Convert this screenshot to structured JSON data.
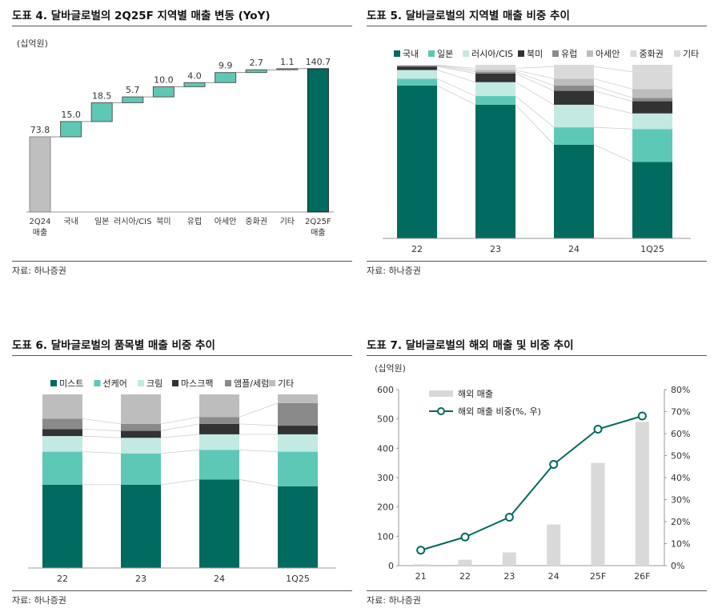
{
  "source_label": "자료: 하나증권",
  "colors": {
    "dark_green": "#006b5e",
    "teal": "#5ec8b6",
    "light_teal": "#c3e9e3",
    "black": "#333333",
    "gray": "#8a8a8a",
    "light_gray": "#bdbdbd",
    "pale_gray": "#d9d9d9",
    "waterfall_start": "#bfbfbf",
    "line_green": "#006b5e"
  },
  "panels": {
    "p4": {
      "title": "도표 4. 달바글로벌의 2Q25F 지역별 매출 변동 (YoY)"
    },
    "p5": {
      "title": "도표 5. 달바글로벌의 지역별 매출 비중 추이"
    },
    "p6": {
      "title": "도표 6. 달바글로벌의 품목별 매출 비중 추이"
    },
    "p7": {
      "title": "도표 7. 달바글로벌의 해외 매출 및 비중 추이"
    }
  },
  "chart_data": [
    {
      "id": "p4",
      "type": "bar",
      "subtype": "waterfall",
      "unit_label": "(십억원)",
      "categories": [
        [
          "2Q24",
          "매출"
        ],
        [
          "국내"
        ],
        [
          "일본"
        ],
        [
          "러시아/CIS"
        ],
        [
          "북미"
        ],
        [
          "유럽"
        ],
        [
          "아세안"
        ],
        [
          "중화권"
        ],
        [
          "기타"
        ],
        [
          "2Q25F",
          "매출"
        ]
      ],
      "values": [
        73.8,
        15.0,
        18.5,
        5.7,
        10.0,
        4.0,
        9.9,
        2.7,
        1.1,
        140.7
      ],
      "labels": [
        "73.8",
        "15.0",
        "18.5",
        "5.7",
        "10.0",
        "4.0",
        "9.9",
        "2.7",
        "1.1",
        "140.7"
      ],
      "ylim": [
        0,
        150
      ]
    },
    {
      "id": "p5",
      "type": "bar",
      "subtype": "stacked-100",
      "categories": [
        "22",
        "23",
        "24",
        "1Q25"
      ],
      "series": [
        {
          "name": "국내",
          "color_key": "dark_green",
          "values": [
            88,
            77,
            54,
            44
          ]
        },
        {
          "name": "일본",
          "color_key": "teal",
          "values": [
            4,
            5,
            10,
            19
          ]
        },
        {
          "name": "러시아/CIS",
          "color_key": "light_teal",
          "values": [
            5,
            8,
            13,
            9
          ]
        },
        {
          "name": "북미",
          "color_key": "black",
          "values": [
            2,
            5,
            8,
            7
          ]
        },
        {
          "name": "유럽",
          "color_key": "gray",
          "values": [
            0.5,
            1,
            3,
            2
          ]
        },
        {
          "name": "아세안",
          "color_key": "light_gray",
          "values": [
            0.2,
            1,
            4,
            5
          ]
        },
        {
          "name": "중화권",
          "color_key": "pale_gray",
          "values": [
            0.2,
            1,
            7,
            10
          ]
        },
        {
          "name": "기타",
          "color_key": "pale_gray",
          "values": [
            0.1,
            2,
            1,
            4
          ]
        }
      ]
    },
    {
      "id": "p6",
      "type": "bar",
      "subtype": "stacked-100",
      "categories": [
        "22",
        "23",
        "24",
        "1Q25"
      ],
      "series": [
        {
          "name": "미스트",
          "color_key": "dark_green",
          "values": [
            48,
            48,
            51,
            47
          ]
        },
        {
          "name": "선케어",
          "color_key": "teal",
          "values": [
            19,
            18,
            17,
            20
          ]
        },
        {
          "name": "크림",
          "color_key": "light_teal",
          "values": [
            9,
            9,
            9,
            10
          ]
        },
        {
          "name": "마스크팩",
          "color_key": "black",
          "values": [
            4,
            4,
            6,
            5
          ]
        },
        {
          "name": "앰플/세럼",
          "color_key": "gray",
          "values": [
            6,
            4,
            4,
            13
          ]
        },
        {
          "name": "기타",
          "color_key": "light_gray",
          "values": [
            14,
            17,
            13,
            5
          ]
        }
      ]
    },
    {
      "id": "p7",
      "type": "bar",
      "subtype": "bar-line-dual-axis",
      "unit_label": "(십억원)",
      "categories": [
        "21",
        "22",
        "23",
        "24",
        "25F",
        "26F"
      ],
      "bars": {
        "name": "해외 매출",
        "values": [
          5,
          20,
          45,
          140,
          350,
          490
        ]
      },
      "line": {
        "name": "해외 매출 비중(%, 우)",
        "values": [
          7,
          13,
          22,
          46,
          62,
          68
        ]
      },
      "y_left": {
        "range": [
          0,
          600
        ],
        "ticks": [
          "0",
          "100",
          "200",
          "300",
          "400",
          "500",
          "600"
        ]
      },
      "y_right": {
        "range": [
          0,
          80
        ],
        "ticks": [
          "0%",
          "10%",
          "20%",
          "30%",
          "40%",
          "50%",
          "60%",
          "70%",
          "80%"
        ]
      }
    }
  ]
}
